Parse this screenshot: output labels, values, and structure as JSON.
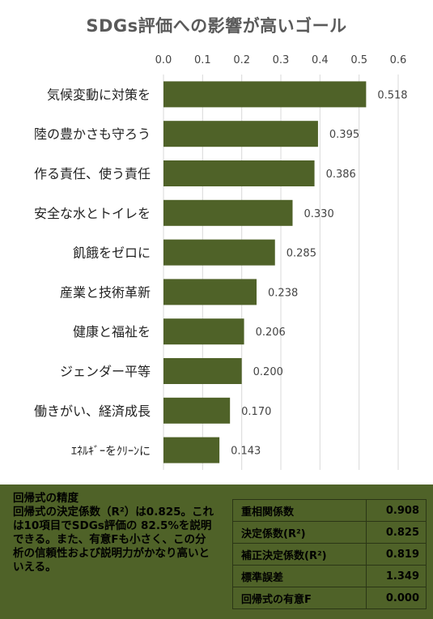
{
  "chart_data": {
    "type": "bar",
    "orientation": "horizontal",
    "title": "SDGs評価への影響が高いゴール",
    "categories": [
      "気候変動に対策を",
      "陸の豊かさも守ろう",
      "作る責任、使う責任",
      "安全な水とトイレを",
      "飢餓をゼロに",
      "産業と技術革新",
      "健康と福祉を",
      "ジェンダー平等",
      "働きがい、経済成長",
      "ｴﾈﾙｷﾞｰをｸﾘｰﾝに"
    ],
    "values": [
      0.518,
      0.395,
      0.386,
      0.33,
      0.285,
      0.238,
      0.206,
      0.2,
      0.17,
      0.143
    ],
    "value_labels": [
      "0.518",
      "0.395",
      "0.386",
      "0.330",
      "0.285",
      "0.238",
      "0.206",
      "0.200",
      "0.170",
      "0.143"
    ],
    "xlim": [
      0,
      0.6
    ],
    "xticks": [
      "0.0",
      "0.1",
      "0.2",
      "0.3",
      "0.4",
      "0.5",
      "0.6"
    ],
    "axis_position": "top",
    "grid": true,
    "legend": "none",
    "bar_color": "#4f6228",
    "grid_color": "#d9d9d9"
  },
  "description": {
    "heading": "回帰式の精度",
    "body": "回帰式の決定係数（R²）は0.825。これは10項目でSDGs評価の 82.5%を説明できる。また、有意Fも小さく、この分析の信頼性および説明力がかなり高いといえる。"
  },
  "stats": [
    {
      "label": "重相関係数",
      "value": "0.908"
    },
    {
      "label": "決定係数(R²)",
      "value": "0.825"
    },
    {
      "label": "補正決定係数(R²)",
      "value": "0.819"
    },
    {
      "label": "標準誤差",
      "value": "1.349"
    },
    {
      "label": "回帰式の有意F",
      "value": "0.000"
    }
  ],
  "colors": {
    "panel_background": "#4f6228",
    "title_text": "#5a5a5a"
  }
}
